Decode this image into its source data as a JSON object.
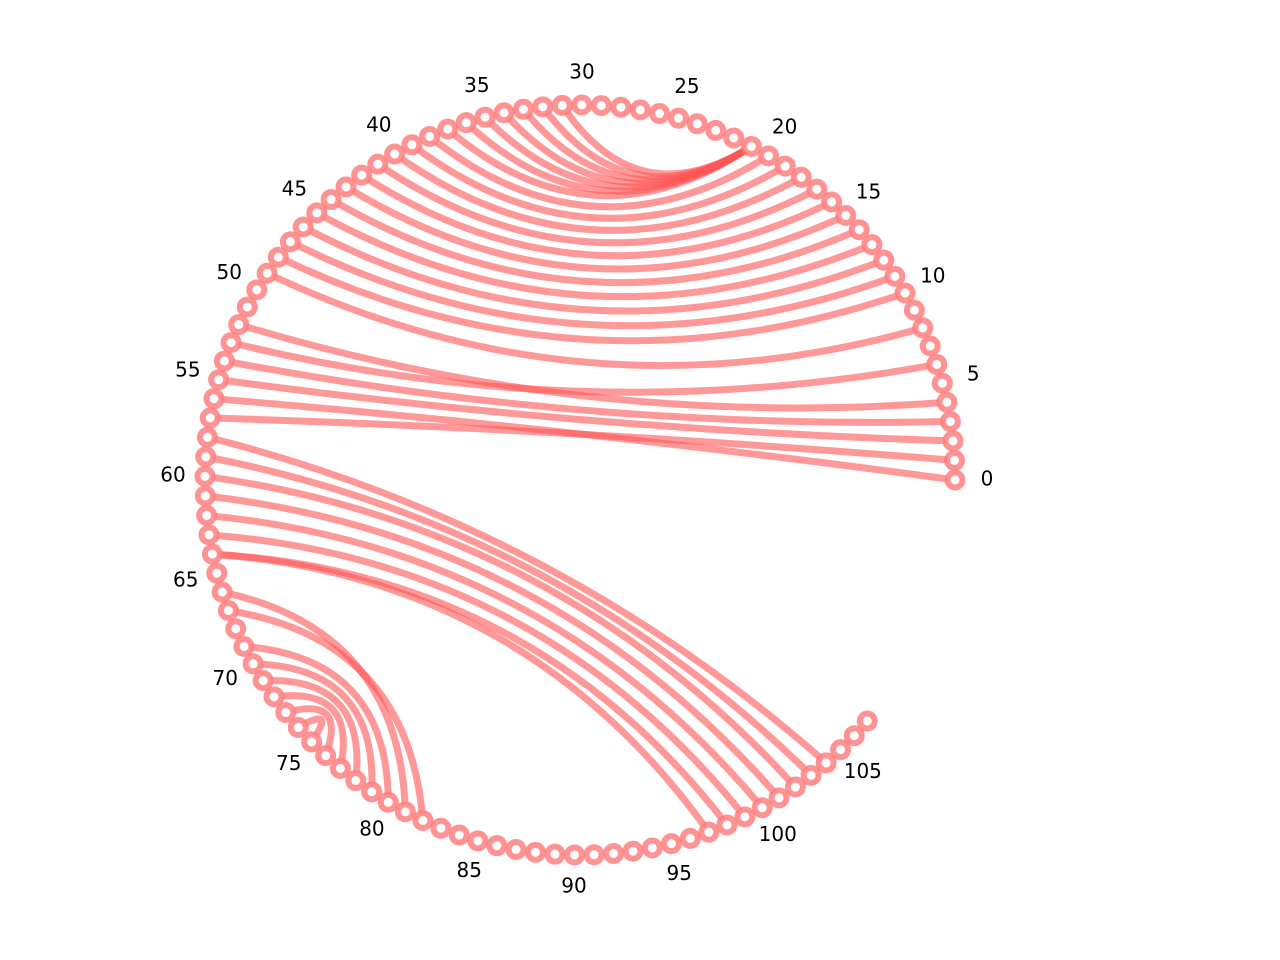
{
  "chart_data": {
    "type": "arc-diagram",
    "layout": "circular",
    "node_count": 108,
    "node_color": "#ff7f7f",
    "edge_color": "#ff5555",
    "tick_labels": [
      "0",
      "5",
      "10",
      "15",
      "20",
      "25",
      "30",
      "35",
      "40",
      "45",
      "50",
      "55",
      "60",
      "65",
      "70",
      "75",
      "80",
      "85",
      "90",
      "95",
      "100",
      "105"
    ],
    "tick_values": [
      0,
      5,
      10,
      15,
      20,
      25,
      30,
      35,
      40,
      45,
      50,
      55,
      60,
      65,
      70,
      75,
      80,
      85,
      90,
      95,
      100,
      105
    ],
    "edges": [
      [
        0,
        56
      ],
      [
        1,
        57
      ],
      [
        2,
        55
      ],
      [
        3,
        54
      ],
      [
        4,
        52
      ],
      [
        6,
        53
      ],
      [
        8,
        49
      ],
      [
        10,
        48
      ],
      [
        11,
        47
      ],
      [
        12,
        46
      ],
      [
        13,
        45
      ],
      [
        14,
        44
      ],
      [
        15,
        43
      ],
      [
        16,
        42
      ],
      [
        17,
        41
      ],
      [
        18,
        40
      ],
      [
        19,
        39
      ],
      [
        20,
        38
      ],
      [
        21,
        31
      ],
      [
        21,
        32
      ],
      [
        21,
        33
      ],
      [
        21,
        34
      ],
      [
        21,
        35
      ],
      [
        21,
        36
      ],
      [
        21,
        37
      ],
      [
        58,
        104
      ],
      [
        59,
        103
      ],
      [
        60,
        102
      ],
      [
        61,
        101
      ],
      [
        62,
        100
      ],
      [
        63,
        99
      ],
      [
        64,
        98
      ],
      [
        64,
        97
      ],
      [
        66,
        81
      ],
      [
        67,
        82
      ],
      [
        69,
        80
      ],
      [
        70,
        79
      ],
      [
        71,
        78
      ],
      [
        72,
        77
      ],
      [
        73,
        76
      ],
      [
        74,
        75
      ]
    ]
  }
}
